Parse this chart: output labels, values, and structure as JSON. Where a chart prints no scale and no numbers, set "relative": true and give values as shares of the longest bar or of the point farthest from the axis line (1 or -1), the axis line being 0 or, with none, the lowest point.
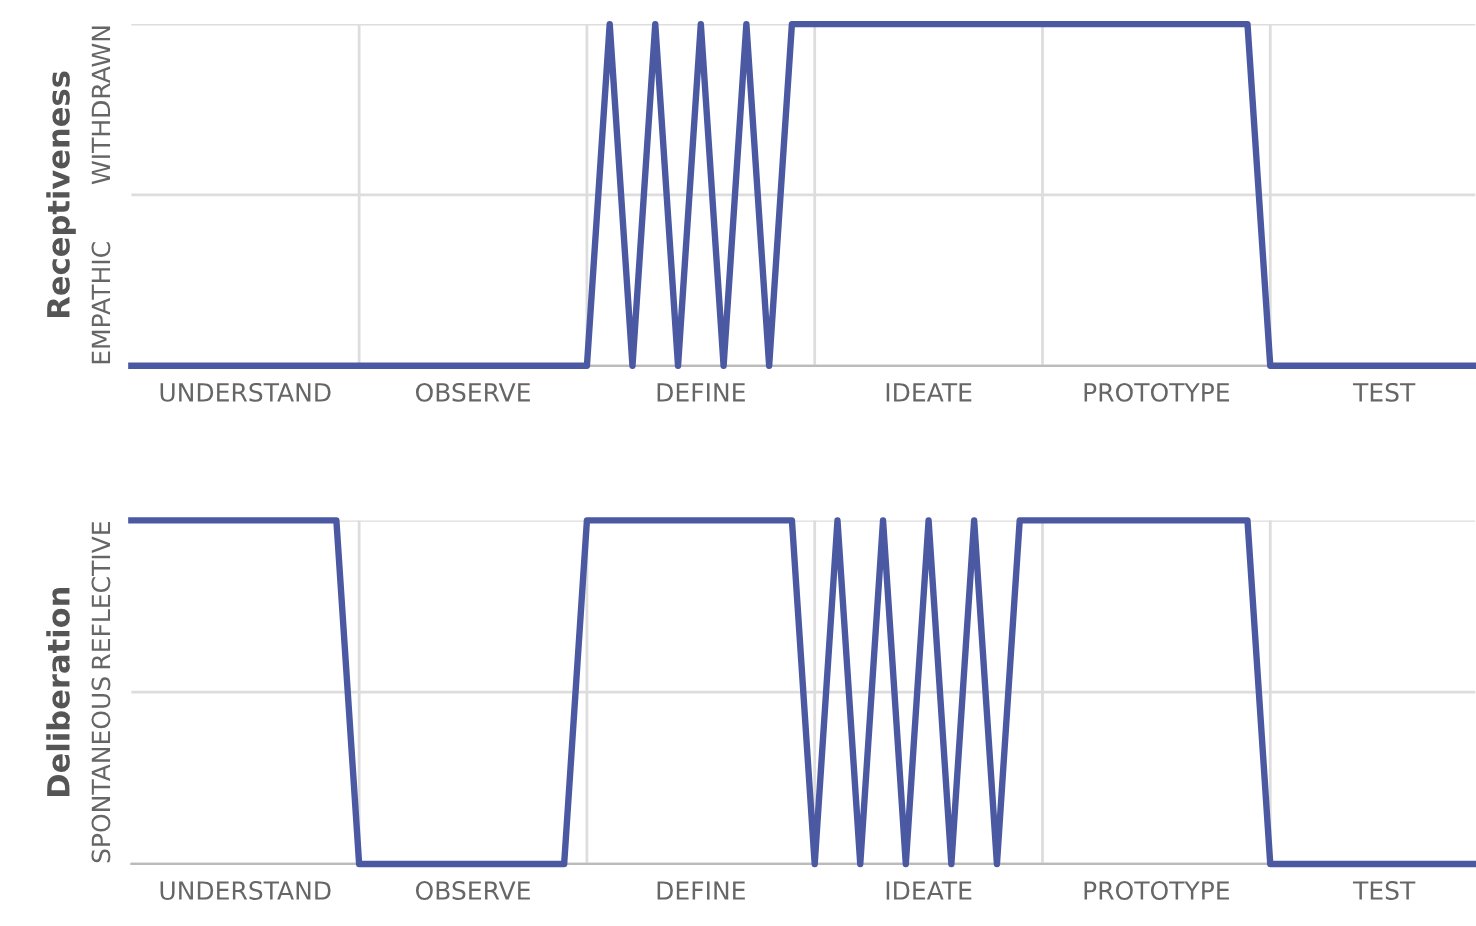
{
  "chart_data": [
    {
      "type": "line",
      "ylabel": "Receptiveness",
      "relative": true,
      "categories": [
        null,
        null,
        null,
        null,
        null,
        "UNDERSTAND",
        null,
        null,
        null,
        null,
        null,
        null,
        null,
        null,
        null,
        "OBSERVE",
        null,
        null,
        null,
        null,
        null,
        null,
        null,
        null,
        null,
        "DEFINE",
        null,
        null,
        null,
        null,
        null,
        null,
        null,
        null,
        null,
        "IDEATE",
        null,
        null,
        null,
        null,
        null,
        null,
        null,
        null,
        null,
        "PROTOTYPE",
        null,
        null,
        null,
        null,
        null,
        null,
        null,
        null,
        null,
        "TEST",
        null,
        null,
        null,
        null
      ],
      "annotations": [
        "EMPATHIC",
        "WITHDRAWN"
      ],
      "grid": true,
      "series": [
        {
          "color": "#4b59a3",
          "values": [
            0,
            0,
            0,
            0,
            0,
            0,
            0,
            0,
            0,
            0,
            0,
            0,
            0,
            0,
            0,
            0,
            0,
            0,
            0,
            0,
            0,
            1,
            0,
            1,
            0,
            1,
            0,
            1,
            0,
            1,
            1,
            1,
            1,
            1,
            1,
            1,
            1,
            1,
            1,
            1,
            1,
            1,
            1,
            1,
            1,
            1,
            1,
            1,
            1,
            1,
            0,
            0,
            0,
            0,
            0,
            0,
            0,
            0,
            0,
            0
          ]
        }
      ]
    },
    {
      "type": "line",
      "ylabel": "Deliberation",
      "relative": true,
      "categories": [
        null,
        null,
        null,
        null,
        null,
        "UNDERSTAND",
        null,
        null,
        null,
        null,
        null,
        null,
        null,
        null,
        null,
        "OBSERVE",
        null,
        null,
        null,
        null,
        null,
        null,
        null,
        null,
        null,
        "DEFINE",
        null,
        null,
        null,
        null,
        null,
        null,
        null,
        null,
        null,
        "IDEATE",
        null,
        null,
        null,
        null,
        null,
        null,
        null,
        null,
        null,
        "PROTOTYPE",
        null,
        null,
        null,
        null,
        null,
        null,
        null,
        null,
        null,
        "TEST",
        null,
        null,
        null,
        null
      ],
      "annotations": [
        "SPONTANEOUS",
        "REFLECTIVE"
      ],
      "grid": true,
      "series": [
        {
          "color": "#4b59a3",
          "values": [
            1,
            1,
            1,
            1,
            1,
            1,
            1,
            1,
            1,
            1,
            0,
            0,
            0,
            0,
            0,
            0,
            0,
            0,
            0,
            0,
            1,
            1,
            1,
            1,
            1,
            1,
            1,
            1,
            1,
            1,
            0,
            1,
            0,
            1,
            0,
            1,
            0,
            1,
            0,
            1,
            1,
            1,
            1,
            1,
            1,
            1,
            1,
            1,
            1,
            1,
            0,
            0,
            0,
            0,
            0,
            0,
            0,
            0,
            0,
            0
          ]
        }
      ]
    }
  ]
}
